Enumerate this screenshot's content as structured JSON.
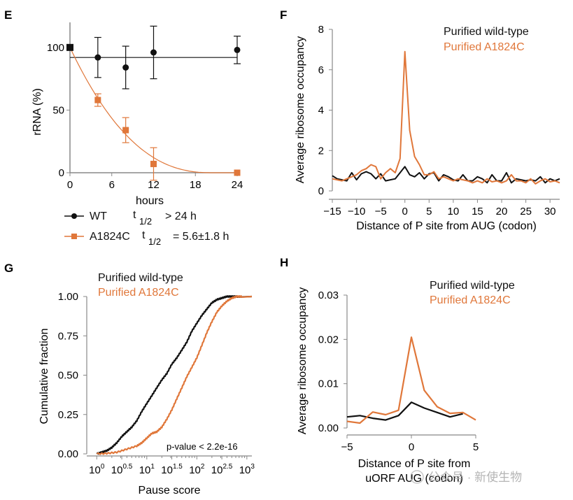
{
  "colors": {
    "black": "#111111",
    "orange": "#e0773a",
    "axis": "#888888",
    "watermark": "#b5b5b5"
  },
  "watermark": "公众号 · 新使生物",
  "chart_data": [
    {
      "panel": "E",
      "type": "scatter",
      "xlabel": "hours",
      "ylabel": "rRNA (%)",
      "xlim": [
        0,
        24
      ],
      "ylim": [
        0,
        120
      ],
      "xticks": [
        0,
        6,
        12,
        18,
        24
      ],
      "yticks": [
        0,
        50,
        100
      ],
      "tick_labels_x": [
        "0",
        "6",
        "12",
        "18",
        "24"
      ],
      "tick_labels_y": [
        "0",
        "50",
        "100"
      ],
      "series": [
        {
          "name": "WT",
          "color": "#111111",
          "marker": "circle",
          "x": [
            0,
            4,
            8,
            12,
            24
          ],
          "y": [
            100,
            92,
            84,
            96,
            98
          ],
          "err": [
            0,
            16,
            17,
            21,
            11
          ],
          "fit": {
            "type": "flat",
            "y": 92
          }
        },
        {
          "name": "A1824C",
          "color": "#e0773a",
          "marker": "square",
          "x": [
            0,
            4,
            8,
            12,
            24
          ],
          "y": [
            100,
            58,
            34,
            7,
            0
          ],
          "err": [
            0,
            5,
            10,
            13,
            0
          ],
          "fit": {
            "type": "decay",
            "half_life_h": 5.6,
            "zero_at": 20.5
          }
        }
      ],
      "legend": [
        {
          "symbol": "WT",
          "t_label": "t",
          "t_sub": "1/2",
          "value": "> 24 h"
        },
        {
          "symbol": "A1824C",
          "t_label": "t",
          "t_sub": "1/2",
          "value": "= 5.6±1.8 h"
        }
      ]
    },
    {
      "panel": "F",
      "type": "line",
      "xlabel": "Distance of P site from AUG (codon)",
      "ylabel": "Average ribosome occupancy",
      "xlim": [
        -15,
        32
      ],
      "ylim": [
        0,
        8
      ],
      "xticks": [
        -15,
        -10,
        -5,
        0,
        5,
        10,
        15,
        20,
        25,
        30
      ],
      "yticks": [
        0,
        2,
        4,
        6,
        8
      ],
      "tick_labels_x": [
        "−15",
        "−10",
        "−5",
        "0",
        "5",
        "10",
        "15",
        "20",
        "25",
        "30"
      ],
      "tick_labels_y": [
        "0",
        "2",
        "4",
        "6",
        "8"
      ],
      "legend": [
        "Purified wild-type",
        "Purified A1824C"
      ],
      "series": [
        {
          "name": "Purified wild-type",
          "color": "#111111",
          "x": [
            -15,
            -14,
            -13,
            -12,
            -11,
            -10,
            -9,
            -8,
            -7,
            -6,
            -5,
            -4,
            -3,
            -2,
            -1,
            0,
            1,
            2,
            3,
            4,
            5,
            6,
            7,
            8,
            9,
            10,
            11,
            12,
            13,
            14,
            15,
            16,
            17,
            18,
            19,
            20,
            21,
            22,
            23,
            24,
            25,
            26,
            27,
            28,
            29,
            30,
            31,
            32
          ],
          "y": [
            0.75,
            0.6,
            0.55,
            0.5,
            0.9,
            0.55,
            0.85,
            0.95,
            0.85,
            0.6,
            0.85,
            0.5,
            0.55,
            0.6,
            0.9,
            1.2,
            0.8,
            0.7,
            0.9,
            0.6,
            0.85,
            0.9,
            0.5,
            0.8,
            0.7,
            0.55,
            0.5,
            0.8,
            0.5,
            0.5,
            0.7,
            0.6,
            0.4,
            0.8,
            0.5,
            0.5,
            0.9,
            0.4,
            0.6,
            0.55,
            0.5,
            0.55,
            0.5,
            0.7,
            0.4,
            0.6,
            0.5,
            0.6
          ]
        },
        {
          "name": "Purified A1824C",
          "color": "#e0773a",
          "x": [
            -15,
            -14,
            -13,
            -12,
            -11,
            -10,
            -9,
            -8,
            -7,
            -6,
            -5,
            -4,
            -3,
            -2,
            -1,
            0,
            1,
            2,
            3,
            4,
            5,
            6,
            7,
            8,
            9,
            10,
            11,
            12,
            13,
            14,
            15,
            16,
            17,
            18,
            19,
            20,
            21,
            22,
            23,
            24,
            25,
            26,
            27,
            28,
            29,
            30,
            31,
            32
          ],
          "y": [
            0.6,
            0.55,
            0.5,
            0.6,
            0.7,
            0.8,
            1.0,
            1.1,
            1.3,
            1.2,
            0.6,
            0.9,
            1.1,
            0.9,
            1.6,
            6.9,
            3.0,
            1.7,
            1.3,
            0.8,
            0.8,
            0.95,
            0.6,
            0.7,
            0.6,
            0.5,
            0.6,
            0.55,
            0.5,
            0.4,
            0.5,
            0.4,
            0.6,
            0.45,
            0.5,
            0.4,
            0.5,
            0.8,
            0.5,
            0.5,
            0.4,
            0.6,
            0.35,
            0.5,
            0.6,
            0.45,
            0.5,
            0.4
          ]
        }
      ]
    },
    {
      "panel": "G",
      "type": "line",
      "xlabel": "Pause score",
      "ylabel": "Cumulative fraction",
      "xscale": "log10",
      "xlim_log10": [
        -0.2,
        3.1
      ],
      "ylim": [
        0,
        1
      ],
      "xticks_log10": [
        0,
        0.5,
        1,
        1.5,
        2,
        2.5,
        3
      ],
      "yticks": [
        0,
        0.25,
        0.5,
        0.75,
        1
      ],
      "tick_labels_y": [
        "0.00",
        "0.25",
        "0.50",
        "0.75",
        "1.00"
      ],
      "tick_base": "10",
      "tick_exp": [
        "0",
        "0.5",
        "1",
        "1.5",
        "2",
        "2.5",
        "3"
      ],
      "legend": [
        "Purified wild-type",
        "Purified A1824C"
      ],
      "annotation": "p-value < 2.2e-16",
      "series": [
        {
          "name": "Purified wild-type",
          "color": "#111111",
          "x_log10": [
            0.0,
            0.1,
            0.2,
            0.3,
            0.4,
            0.5,
            0.6,
            0.7,
            0.8,
            0.9,
            1.0,
            1.1,
            1.2,
            1.3,
            1.4,
            1.5,
            1.6,
            1.7,
            1.8,
            1.9,
            2.0,
            2.1,
            2.2,
            2.3,
            2.4,
            2.5,
            2.6,
            2.7,
            2.8
          ],
          "y": [
            0.0,
            0.01,
            0.02,
            0.04,
            0.07,
            0.11,
            0.14,
            0.17,
            0.21,
            0.27,
            0.32,
            0.37,
            0.42,
            0.47,
            0.51,
            0.57,
            0.61,
            0.66,
            0.71,
            0.78,
            0.83,
            0.88,
            0.92,
            0.96,
            0.98,
            0.99,
            1.0,
            1.0,
            1.0
          ]
        },
        {
          "name": "Purified A1824C",
          "color": "#e0773a",
          "x_log10": [
            0.0,
            0.2,
            0.4,
            0.6,
            0.8,
            0.9,
            1.0,
            1.1,
            1.2,
            1.3,
            1.4,
            1.5,
            1.6,
            1.7,
            1.8,
            1.9,
            2.0,
            2.1,
            2.2,
            2.3,
            2.4,
            2.5,
            2.6,
            2.7,
            2.8,
            2.9
          ],
          "y": [
            0.0,
            0.003,
            0.01,
            0.03,
            0.05,
            0.07,
            0.1,
            0.13,
            0.14,
            0.17,
            0.22,
            0.28,
            0.35,
            0.42,
            0.49,
            0.55,
            0.61,
            0.69,
            0.77,
            0.84,
            0.9,
            0.94,
            0.97,
            0.99,
            1.0,
            1.0
          ]
        }
      ]
    },
    {
      "panel": "H",
      "type": "line",
      "xlabel": "Distance of P site from uORF AUG (codon)",
      "xlabel_lines": [
        "Distance of P site from",
        "uORF AUG (codon)"
      ],
      "ylabel": "Average ribosome occupancy",
      "xlim": [
        -5,
        5
      ],
      "ylim": [
        0,
        0.03
      ],
      "xticks": [
        -5,
        0,
        5
      ],
      "yticks": [
        0,
        0.01,
        0.02,
        0.03
      ],
      "tick_labels_x": [
        "−5",
        "0",
        "5"
      ],
      "tick_labels_y": [
        "0.00",
        "0.01",
        "0.02",
        "0.03"
      ],
      "legend": [
        "Purified wild-type",
        "Purified A1824C"
      ],
      "series": [
        {
          "name": "Purified wild-type",
          "color": "#111111",
          "x": [
            -5,
            -4,
            -3,
            -2,
            -1,
            0,
            1,
            2,
            3,
            4
          ],
          "y": [
            0.0025,
            0.0028,
            0.0022,
            0.0018,
            0.0028,
            0.0058,
            0.0045,
            0.0035,
            0.0025,
            0.0032
          ]
        },
        {
          "name": "Purified A1824C",
          "color": "#e0773a",
          "x": [
            -5,
            -4,
            -3,
            -2,
            -1,
            0,
            1,
            2,
            3,
            4,
            5
          ],
          "y": [
            0.0015,
            0.0011,
            0.0036,
            0.003,
            0.004,
            0.0205,
            0.0085,
            0.0048,
            0.0033,
            0.0035,
            0.0018
          ]
        }
      ]
    }
  ]
}
